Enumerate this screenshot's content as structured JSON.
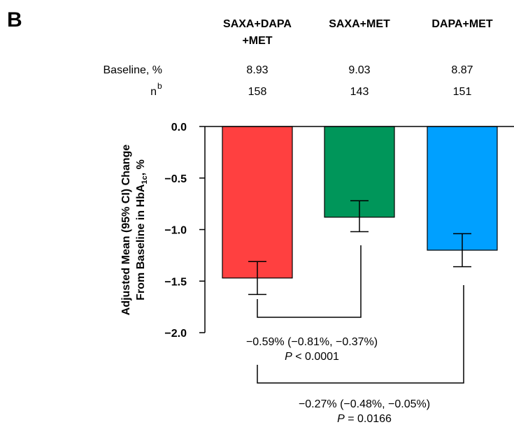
{
  "panel_label": "B",
  "header": {
    "groups": [
      {
        "line1": "SAXA+DAPA",
        "line2": "+MET"
      },
      {
        "line1": "SAXA+MET",
        "line2": ""
      },
      {
        "line1": "DAPA+MET",
        "line2": ""
      }
    ],
    "baseline_label": "Baseline, %",
    "baseline_values": [
      "8.93",
      "9.03",
      "8.87"
    ],
    "n_label": "n",
    "n_superscript": "b",
    "n_values": [
      "158",
      "143",
      "151"
    ]
  },
  "comparisons": [
    {
      "line1": "−0.59% (−0.81%, −0.37%)",
      "p_letter": "P",
      "p_rest": " < 0.0001"
    },
    {
      "line1": "−0.27% (−0.48%, −0.05%)",
      "p_letter": "P",
      "p_rest": " = 0.0166"
    }
  ],
  "colors": {
    "saxa_dapa_met": "#ff4040",
    "saxa_met": "#00965a",
    "dapa_met": "#00a0ff"
  },
  "chart_data": {
    "type": "bar",
    "categories": [
      "SAXA+DAPA +MET",
      "SAXA+MET",
      "DAPA+MET"
    ],
    "values": [
      -1.47,
      -0.88,
      -1.2
    ],
    "ci_low": [
      -1.63,
      -1.02,
      -1.36
    ],
    "ci_high": [
      -1.31,
      -0.72,
      -1.04
    ],
    "ylabel_line1": "Adjusted Mean (95% CI) Change",
    "ylabel_line2_pre": "From Baseline in HbA",
    "ylabel_line2_sub": "1c",
    "ylabel_line2_post": ", %",
    "ylim": [
      -2.0,
      0.0
    ],
    "yticks": [
      "0.0",
      "−0.5",
      "−1.0",
      "−1.5",
      "−2.0"
    ],
    "ytick_values": [
      0.0,
      -0.5,
      -1.0,
      -1.5,
      -2.0
    ],
    "grid": false
  }
}
